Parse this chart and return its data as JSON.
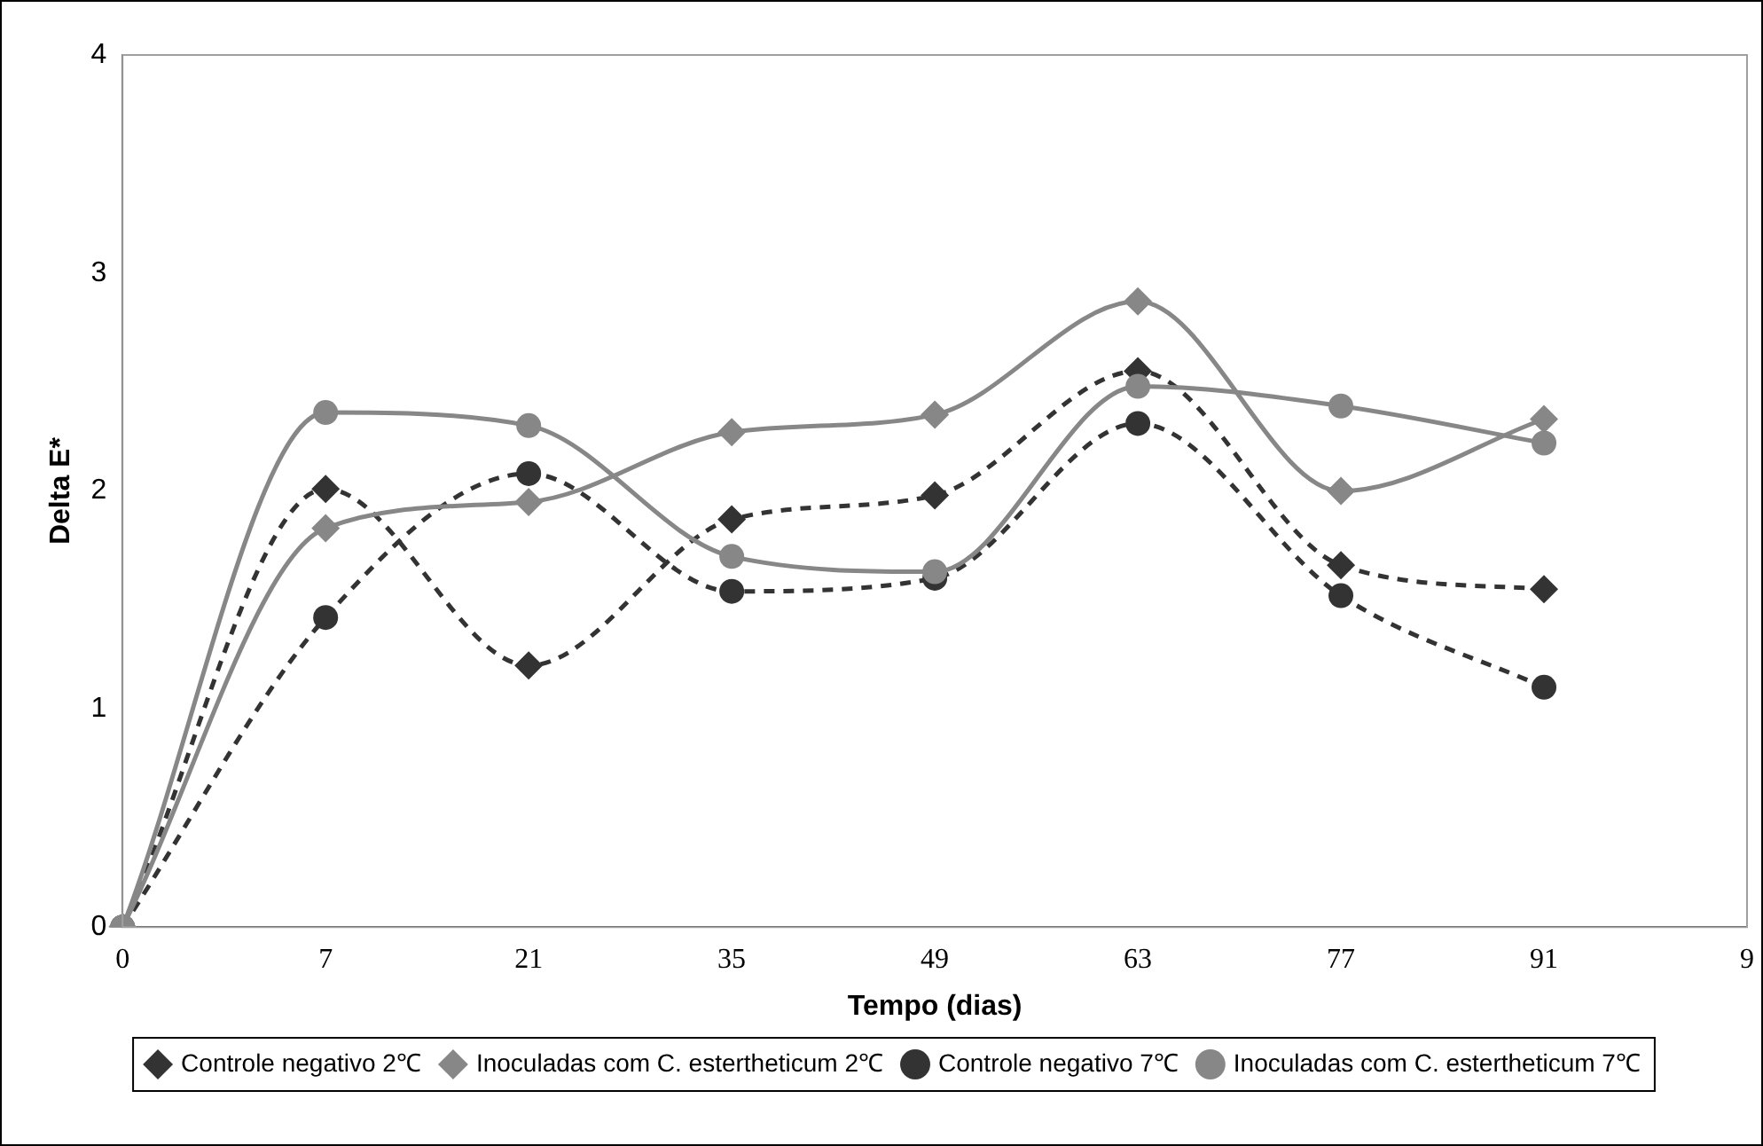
{
  "chart_data": {
    "type": "line",
    "xlabel": "Tempo (dias)",
    "ylabel": "Delta E*",
    "categories": [
      "0",
      "7",
      "21",
      "35",
      "49",
      "63",
      "77",
      "91",
      "9"
    ],
    "series": [
      {
        "name": "Controle negativo 2℃",
        "color": "#333333",
        "marker": "diamond",
        "line_style": "dashed",
        "values": [
          0,
          2.01,
          1.2,
          1.87,
          1.98,
          2.55,
          1.66,
          1.55,
          null
        ]
      },
      {
        "name": "Inoculadas com C. estertheticum 2℃",
        "color": "#878787",
        "marker": "diamond",
        "line_style": "solid",
        "values": [
          0,
          1.83,
          1.95,
          2.27,
          2.35,
          2.87,
          2.0,
          2.33,
          null
        ]
      },
      {
        "name": "Controle negativo 7℃",
        "color": "#333333",
        "marker": "circle",
        "line_style": "dashed",
        "values": [
          0,
          1.42,
          2.08,
          1.54,
          1.6,
          2.31,
          1.52,
          1.1,
          null
        ]
      },
      {
        "name": "Inoculadas com C. estertheticum 7℃",
        "color": "#878787",
        "marker": "circle",
        "line_style": "solid",
        "values": [
          0,
          2.36,
          2.3,
          1.7,
          1.63,
          2.48,
          2.39,
          2.22,
          null
        ]
      }
    ],
    "ylim": [
      0,
      4
    ],
    "yticks": [
      0,
      1,
      2,
      3,
      4
    ],
    "grid": false,
    "legend": "bottom"
  }
}
